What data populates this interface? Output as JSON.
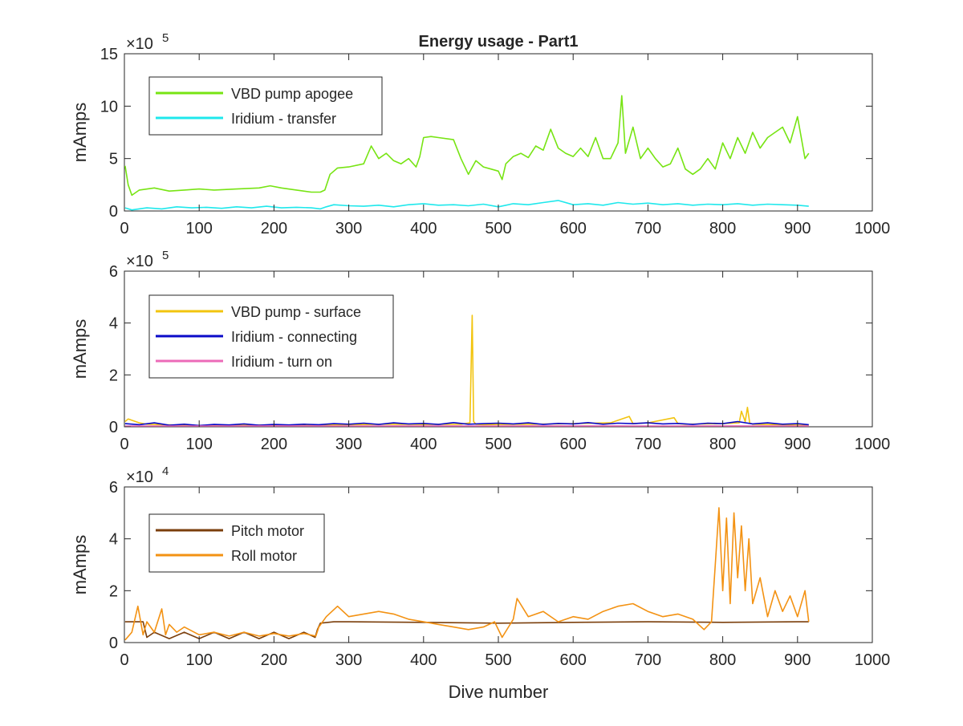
{
  "figure": {
    "title": "Energy usage - Part1",
    "xlabel": "Dive number"
  },
  "chart_data": [
    {
      "type": "line",
      "title": "Energy usage - Part1",
      "xlabel": "",
      "ylabel": "mAmps",
      "xlim": [
        0,
        1000
      ],
      "ylim": [
        0,
        1500000
      ],
      "xticks": [
        "0",
        "100",
        "200",
        "300",
        "400",
        "500",
        "600",
        "700",
        "800",
        "900",
        "1000"
      ],
      "yticks": [
        "0",
        "5",
        "10",
        "15"
      ],
      "multiplier": "×10",
      "exponent": "5",
      "legend_position": "top-left",
      "grid": false,
      "series": [
        {
          "name": "VBD pump apogee",
          "color": "#77e413",
          "x": [
            1,
            5,
            10,
            20,
            40,
            60,
            80,
            100,
            120,
            150,
            180,
            195,
            210,
            230,
            250,
            262,
            268,
            275,
            285,
            300,
            320,
            330,
            340,
            350,
            360,
            370,
            380,
            390,
            395,
            400,
            410,
            420,
            440,
            450,
            460,
            470,
            480,
            490,
            500,
            505,
            510,
            520,
            530,
            540,
            550,
            560,
            570,
            580,
            590,
            600,
            610,
            620,
            630,
            640,
            650,
            660,
            665,
            670,
            680,
            690,
            700,
            710,
            720,
            730,
            740,
            750,
            760,
            770,
            780,
            790,
            800,
            810,
            820,
            830,
            840,
            850,
            860,
            870,
            880,
            890,
            900,
            910,
            915
          ],
          "y": [
            430000,
            250000,
            150000,
            200000,
            220000,
            190000,
            200000,
            210000,
            200000,
            210000,
            220000,
            240000,
            220000,
            200000,
            180000,
            180000,
            200000,
            350000,
            410000,
            420000,
            450000,
            620000,
            500000,
            550000,
            480000,
            450000,
            500000,
            420000,
            520000,
            700000,
            710000,
            700000,
            680000,
            500000,
            350000,
            480000,
            420000,
            400000,
            380000,
            300000,
            450000,
            520000,
            550000,
            510000,
            620000,
            580000,
            780000,
            600000,
            550000,
            520000,
            600000,
            520000,
            700000,
            500000,
            500000,
            650000,
            1100000,
            550000,
            800000,
            500000,
            600000,
            500000,
            420000,
            450000,
            600000,
            400000,
            350000,
            400000,
            500000,
            400000,
            650000,
            500000,
            700000,
            550000,
            750000,
            600000,
            700000,
            750000,
            800000,
            650000,
            900000,
            500000,
            550000
          ]
        },
        {
          "name": "Iridium - transfer",
          "color": "#1fe8ec",
          "x": [
            1,
            10,
            30,
            50,
            70,
            90,
            110,
            130,
            150,
            170,
            190,
            210,
            230,
            250,
            262,
            270,
            280,
            300,
            320,
            340,
            360,
            380,
            400,
            420,
            440,
            460,
            480,
            500,
            520,
            540,
            560,
            580,
            600,
            620,
            640,
            660,
            680,
            700,
            720,
            740,
            760,
            780,
            800,
            820,
            840,
            860,
            880,
            900,
            915
          ],
          "y": [
            30000,
            10000,
            30000,
            20000,
            40000,
            30000,
            35000,
            25000,
            40000,
            30000,
            45000,
            30000,
            35000,
            30000,
            20000,
            40000,
            60000,
            50000,
            45000,
            55000,
            40000,
            60000,
            70000,
            55000,
            60000,
            50000,
            65000,
            40000,
            70000,
            60000,
            80000,
            100000,
            60000,
            70000,
            55000,
            80000,
            65000,
            75000,
            60000,
            70000,
            55000,
            65000,
            60000,
            70000,
            55000,
            65000,
            60000,
            55000,
            45000
          ]
        }
      ]
    },
    {
      "type": "line",
      "title": "",
      "xlabel": "",
      "ylabel": "mAmps",
      "xlim": [
        0,
        1000
      ],
      "ylim": [
        0,
        600000
      ],
      "xticks": [
        "0",
        "100",
        "200",
        "300",
        "400",
        "500",
        "600",
        "700",
        "800",
        "900",
        "1000"
      ],
      "yticks": [
        "0",
        "2",
        "4",
        "6"
      ],
      "multiplier": "×10",
      "exponent": "5",
      "legend_position": "top-left",
      "grid": false,
      "series": [
        {
          "name": "VBD pump - surface",
          "color": "#f2c40f",
          "x": [
            1,
            5,
            10,
            20,
            30,
            50,
            100,
            150,
            200,
            250,
            300,
            350,
            400,
            450,
            462,
            465,
            467,
            470,
            480,
            500,
            550,
            600,
            650,
            675,
            680,
            700,
            735,
            740,
            750,
            800,
            822,
            825,
            830,
            833,
            836,
            840,
            880,
            915
          ],
          "y": [
            20000,
            30000,
            25000,
            15000,
            10000,
            8000,
            5000,
            6000,
            7000,
            6000,
            8000,
            10000,
            9000,
            10000,
            15000,
            430000,
            20000,
            10000,
            8000,
            9000,
            10000,
            12000,
            15000,
            40000,
            12000,
            15000,
            35000,
            12000,
            10000,
            12000,
            15000,
            60000,
            20000,
            75000,
            15000,
            10000,
            8000,
            5000
          ]
        },
        {
          "name": "Iridium - connecting",
          "color": "#0a0ac8",
          "x": [
            1,
            20,
            40,
            60,
            80,
            100,
            120,
            140,
            160,
            180,
            200,
            220,
            240,
            260,
            280,
            300,
            320,
            340,
            360,
            380,
            400,
            420,
            440,
            460,
            480,
            500,
            520,
            540,
            560,
            580,
            600,
            620,
            640,
            660,
            680,
            700,
            720,
            740,
            760,
            780,
            800,
            820,
            840,
            860,
            880,
            900,
            915
          ],
          "y": [
            12000,
            8000,
            15000,
            6000,
            10000,
            5000,
            9000,
            7000,
            11000,
            6000,
            9000,
            7000,
            10000,
            8000,
            12000,
            10000,
            14000,
            9000,
            15000,
            11000,
            13000,
            9000,
            16000,
            10000,
            12000,
            14000,
            11000,
            15000,
            9000,
            13000,
            11000,
            16000,
            10000,
            14000,
            12000,
            15000,
            11000,
            13000,
            9000,
            14000,
            12000,
            20000,
            11000,
            15000,
            10000,
            12000,
            8000
          ]
        },
        {
          "name": "Iridium - turn on",
          "color": "#ec6bb8",
          "x": [
            1,
            100,
            200,
            300,
            400,
            500,
            600,
            700,
            800,
            915
          ],
          "y": [
            3000,
            3000,
            3500,
            3000,
            3500,
            3000,
            3500,
            3000,
            3500,
            3000
          ]
        }
      ]
    },
    {
      "type": "line",
      "title": "",
      "xlabel": "Dive number",
      "ylabel": "mAmps",
      "xlim": [
        0,
        1000
      ],
      "ylim": [
        0,
        60000
      ],
      "xticks": [
        "0",
        "100",
        "200",
        "300",
        "400",
        "500",
        "600",
        "700",
        "800",
        "900",
        "1000"
      ],
      "yticks": [
        "0",
        "2",
        "4",
        "6"
      ],
      "multiplier": "×10",
      "exponent": "4",
      "legend_position": "top-left",
      "grid": false,
      "series": [
        {
          "name": "Pitch motor",
          "color": "#7b3f0c",
          "x": [
            1,
            25,
            30,
            40,
            60,
            80,
            100,
            120,
            140,
            160,
            180,
            200,
            220,
            240,
            255,
            258,
            262,
            280,
            300,
            400,
            500,
            600,
            700,
            800,
            900,
            915
          ],
          "y": [
            8000,
            8000,
            2000,
            4000,
            1500,
            4000,
            1500,
            4000,
            1500,
            4000,
            1500,
            4000,
            1500,
            4000,
            2000,
            5000,
            7500,
            8000,
            8000,
            7800,
            7500,
            7800,
            8000,
            7800,
            8000,
            8000
          ]
        },
        {
          "name": "Roll motor",
          "color": "#f39213",
          "x": [
            1,
            10,
            18,
            25,
            30,
            40,
            50,
            55,
            60,
            70,
            80,
            100,
            120,
            140,
            160,
            180,
            200,
            220,
            240,
            256,
            260,
            270,
            285,
            300,
            320,
            340,
            360,
            380,
            400,
            420,
            440,
            460,
            480,
            495,
            505,
            520,
            525,
            540,
            560,
            580,
            600,
            620,
            640,
            660,
            680,
            700,
            720,
            740,
            760,
            775,
            785,
            790,
            795,
            800,
            805,
            810,
            815,
            820,
            825,
            830,
            835,
            840,
            850,
            860,
            870,
            880,
            890,
            900,
            910,
            915
          ],
          "y": [
            1000,
            4000,
            14000,
            3000,
            8000,
            4000,
            13000,
            3000,
            7000,
            4000,
            6000,
            3000,
            4000,
            2500,
            4000,
            2500,
            3500,
            2500,
            3500,
            2500,
            6000,
            10000,
            14000,
            10000,
            11000,
            12000,
            11000,
            9000,
            8000,
            7000,
            6000,
            5000,
            6000,
            8000,
            2000,
            9000,
            17000,
            10000,
            12000,
            8000,
            10000,
            9000,
            12000,
            14000,
            15000,
            12000,
            10000,
            11000,
            9000,
            5000,
            8000,
            30000,
            52000,
            20000,
            48000,
            15000,
            50000,
            25000,
            45000,
            20000,
            40000,
            15000,
            25000,
            10000,
            20000,
            12000,
            18000,
            10000,
            20000,
            8000
          ]
        }
      ]
    }
  ]
}
